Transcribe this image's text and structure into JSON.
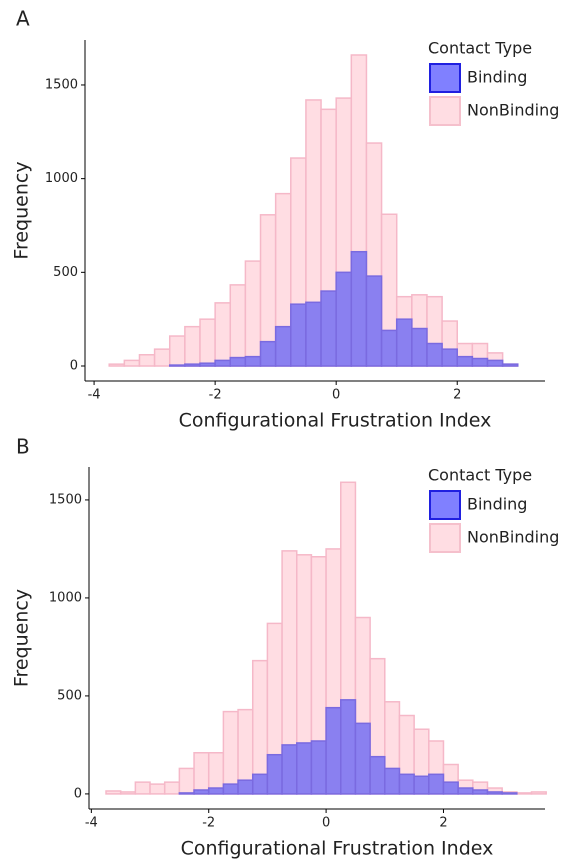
{
  "chart_data": [
    {
      "type": "histogram",
      "panel_label": "A",
      "xlabel": "Configurational Frustration Index",
      "ylabel": "Frequency",
      "legend_title": "Contact Type",
      "bins": [
        -3.75,
        -3.5,
        -3.25,
        -3.0,
        -2.75,
        -2.5,
        -2.25,
        -2.0,
        -1.75,
        -1.5,
        -1.25,
        -1.0,
        -0.75,
        -0.5,
        -0.25,
        0,
        0.25,
        0.5,
        0.75,
        1.0,
        1.25,
        1.5,
        1.75,
        2.0,
        2.25,
        2.5,
        2.75,
        3.0
      ],
      "series": [
        {
          "name": "NonBinding",
          "color": "#ffdde3",
          "values": [
            10,
            30,
            60,
            90,
            160,
            210,
            250,
            337,
            433,
            560,
            807,
            920,
            1110,
            1420,
            1370,
            1430,
            1660,
            1190,
            810,
            370,
            380,
            370,
            240,
            120,
            120,
            70,
            10
          ]
        },
        {
          "name": "Binding",
          "color": "#8a80f0",
          "values": [
            0,
            0,
            0,
            0,
            5,
            10,
            15,
            30,
            45,
            50,
            130,
            210,
            330,
            340,
            400,
            500,
            610,
            480,
            190,
            250,
            200,
            120,
            90,
            50,
            40,
            30,
            10
          ]
        }
      ],
      "xlim": [
        -4.15,
        3.45
      ],
      "ylim": [
        -80,
        1740
      ],
      "xticks": [
        -4,
        -2,
        0,
        2
      ],
      "yticks": [
        0,
        500,
        1000,
        1500
      ]
    },
    {
      "type": "histogram",
      "panel_label": "B",
      "xlabel": "Configurational Frustration Index",
      "ylabel": "Frequency",
      "legend_title": "Contact Type",
      "bins": [
        -3.75,
        -3.5,
        -3.25,
        -3.0,
        -2.75,
        -2.5,
        -2.25,
        -2.0,
        -1.75,
        -1.5,
        -1.25,
        -1.0,
        -0.75,
        -0.5,
        -0.25,
        0,
        0.25,
        0.5,
        0.75,
        1.0,
        1.25,
        1.5,
        1.75,
        2.0,
        2.25,
        2.5,
        2.75,
        3.0,
        3.25,
        3.5,
        3.75
      ],
      "series": [
        {
          "name": "NonBinding",
          "color": "#ffdde3",
          "values": [
            15,
            10,
            60,
            50,
            60,
            130,
            210,
            210,
            420,
            430,
            680,
            870,
            1240,
            1220,
            1210,
            1250,
            1590,
            900,
            690,
            470,
            400,
            330,
            270,
            150,
            70,
            60,
            30,
            10,
            5,
            10
          ]
        },
        {
          "name": "Binding",
          "color": "#8a80f0",
          "values": [
            0,
            0,
            0,
            0,
            0,
            5,
            20,
            30,
            50,
            70,
            100,
            200,
            250,
            260,
            270,
            440,
            480,
            360,
            190,
            130,
            100,
            90,
            100,
            60,
            30,
            20,
            10,
            5,
            0,
            0
          ]
        }
      ],
      "xlim": [
        -4.04,
        3.73
      ],
      "ylim": [
        -77,
        1668
      ],
      "xticks": [
        -4,
        -2,
        0,
        2
      ],
      "yticks": [
        0,
        500,
        1000,
        1500
      ]
    }
  ]
}
